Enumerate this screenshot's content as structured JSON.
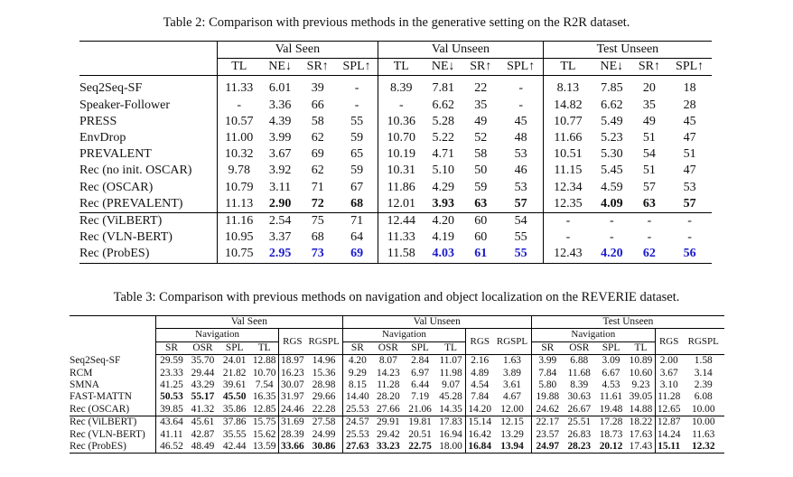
{
  "table2": {
    "caption": "Table 2: Comparison with previous methods in the generative setting on the R2R dataset.",
    "groups": [
      "Val Seen",
      "Val Unseen",
      "Test Unseen"
    ],
    "metrics": [
      "TL",
      "NE↓",
      "SR↑",
      "SPL↑"
    ],
    "rows": [
      {
        "method": "Seq2Seq-SF",
        "v": [
          "11.33",
          "6.01",
          "39",
          "-",
          "8.39",
          "7.81",
          "22",
          "-",
          "8.13",
          "7.85",
          "20",
          "18"
        ]
      },
      {
        "method": "Speaker-Follower",
        "v": [
          "-",
          "3.36",
          "66",
          "-",
          "-",
          "6.62",
          "35",
          "-",
          "14.82",
          "6.62",
          "35",
          "28"
        ]
      },
      {
        "method": "PRESS",
        "v": [
          "10.57",
          "4.39",
          "58",
          "55",
          "10.36",
          "5.28",
          "49",
          "45",
          "10.77",
          "5.49",
          "49",
          "45"
        ]
      },
      {
        "method": "EnvDrop",
        "v": [
          "11.00",
          "3.99",
          "62",
          "59",
          "10.70",
          "5.22",
          "52",
          "48",
          "11.66",
          "5.23",
          "51",
          "47"
        ]
      },
      {
        "method": "PREVALENT",
        "v": [
          "10.32",
          "3.67",
          "69",
          "65",
          "10.19",
          "4.71",
          "58",
          "53",
          "10.51",
          "5.30",
          "54",
          "51"
        ]
      },
      {
        "method": "Rec (no init. OSCAR)",
        "v": [
          "9.78",
          "3.92",
          "62",
          "59",
          "10.31",
          "5.10",
          "50",
          "46",
          "11.15",
          "5.45",
          "51",
          "47"
        ]
      },
      {
        "method": "Rec (OSCAR)",
        "v": [
          "10.79",
          "3.11",
          "71",
          "67",
          "11.86",
          "4.29",
          "59",
          "53",
          "12.34",
          "4.59",
          "57",
          "53"
        ]
      },
      {
        "method": "Rec (PREVALENT)",
        "v": [
          "11.13",
          "2.90",
          "72",
          "68",
          "12.01",
          "3.93",
          "63",
          "57",
          "12.35",
          "4.09",
          "63",
          "57"
        ],
        "bold": [
          1,
          2,
          3,
          5,
          6,
          7,
          9,
          10,
          11
        ]
      },
      {
        "method": "Rec (ViLBERT)",
        "v": [
          "11.16",
          "2.54",
          "75",
          "71",
          "12.44",
          "4.20",
          "60",
          "54",
          "-",
          "-",
          "-",
          "-"
        ]
      },
      {
        "method": "Rec (VLN-BERT)",
        "v": [
          "10.95",
          "3.37",
          "68",
          "64",
          "11.33",
          "4.19",
          "60",
          "55",
          "-",
          "-",
          "-",
          "-"
        ]
      },
      {
        "method": "Rec (ProbES)",
        "v": [
          "10.75",
          "2.95",
          "73",
          "69",
          "11.58",
          "4.03",
          "61",
          "55",
          "12.43",
          "4.20",
          "62",
          "56"
        ],
        "blue": [
          1,
          2,
          3,
          5,
          6,
          7,
          9,
          10,
          11
        ]
      }
    ]
  },
  "table3": {
    "caption": "Table 3: Comparison with previous methods on navigation and object localization on the REVERIE dataset.",
    "groups": [
      "Val Seen",
      "Val Unseen",
      "Test Unseen"
    ],
    "subgroup": "Navigation",
    "nav_metrics": [
      "SR",
      "OSR",
      "SPL",
      "TL"
    ],
    "loc_metrics": [
      "RGS",
      "RGSPL"
    ],
    "rows": [
      {
        "method": "Seq2Seq-SF",
        "v": [
          "29.59",
          "35.70",
          "24.01",
          "12.88",
          "18.97",
          "14.96",
          "4.20",
          "8.07",
          "2.84",
          "11.07",
          "2.16",
          "1.63",
          "3.99",
          "6.88",
          "3.09",
          "10.89",
          "2.00",
          "1.58"
        ]
      },
      {
        "method": "RCM",
        "v": [
          "23.33",
          "29.44",
          "21.82",
          "10.70",
          "16.23",
          "15.36",
          "9.29",
          "14.23",
          "6.97",
          "11.98",
          "4.89",
          "3.89",
          "7.84",
          "11.68",
          "6.67",
          "10.60",
          "3.67",
          "3.14"
        ]
      },
      {
        "method": "SMNA",
        "v": [
          "41.25",
          "43.29",
          "39.61",
          "7.54",
          "30.07",
          "28.98",
          "8.15",
          "11.28",
          "6.44",
          "9.07",
          "4.54",
          "3.61",
          "5.80",
          "8.39",
          "4.53",
          "9.23",
          "3.10",
          "2.39"
        ]
      },
      {
        "method": "FAST-MATTN",
        "v": [
          "50.53",
          "55.17",
          "45.50",
          "16.35",
          "31.97",
          "29.66",
          "14.40",
          "28.20",
          "7.19",
          "45.28",
          "7.84",
          "4.67",
          "19.88",
          "30.63",
          "11.61",
          "39.05",
          "11.28",
          "6.08"
        ],
        "bold": [
          0,
          1,
          2
        ]
      },
      {
        "method": "Rec (OSCAR)",
        "v": [
          "39.85",
          "41.32",
          "35.86",
          "12.85",
          "24.46",
          "22.28",
          "25.53",
          "27.66",
          "21.06",
          "14.35",
          "14.20",
          "12.00",
          "24.62",
          "26.67",
          "19.48",
          "14.88",
          "12.65",
          "10.00"
        ]
      },
      {
        "method": "Rec (ViLBERT)",
        "v": [
          "43.64",
          "45.61",
          "37.86",
          "15.75",
          "31.69",
          "27.58",
          "24.57",
          "29.91",
          "19.81",
          "17.83",
          "15.14",
          "12.15",
          "22.17",
          "25.51",
          "17.28",
          "18.22",
          "12.87",
          "10.00"
        ]
      },
      {
        "method": "Rec (VLN-BERT)",
        "v": [
          "41.11",
          "42.87",
          "35.55",
          "15.62",
          "28.39",
          "24.99",
          "25.53",
          "29.42",
          "20.51",
          "16.94",
          "16.42",
          "13.29",
          "23.57",
          "26.83",
          "18.73",
          "17.63",
          "14.24",
          "11.63"
        ]
      },
      {
        "method": "Rec (ProbES)",
        "v": [
          "46.52",
          "48.49",
          "42.44",
          "13.59",
          "33.66",
          "30.86",
          "27.63",
          "33.23",
          "22.75",
          "18.00",
          "16.84",
          "13.94",
          "24.97",
          "28.23",
          "20.12",
          "17.43",
          "15.11",
          "12.32"
        ],
        "bold": [
          4,
          5,
          6,
          7,
          8,
          10,
          11,
          12,
          13,
          14,
          16,
          17
        ]
      }
    ]
  }
}
